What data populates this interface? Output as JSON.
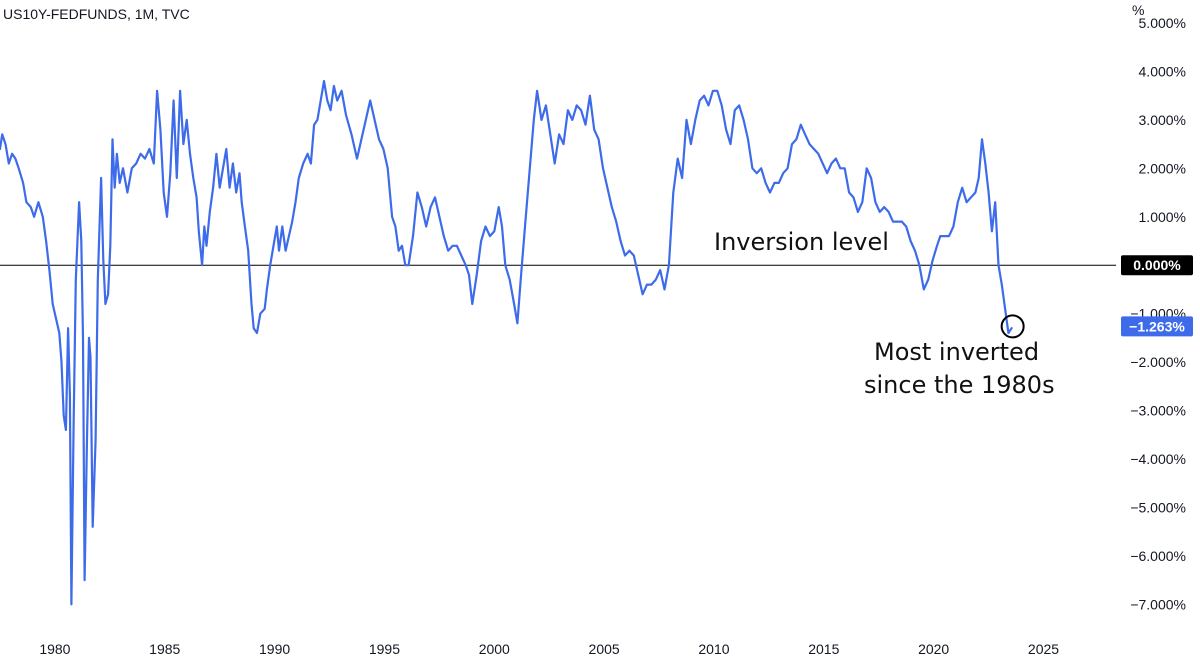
{
  "chart_data": {
    "type": "line",
    "title": "US10Y-FEDFUNDS, 1M, TVC",
    "xlabel": "",
    "ylabel": "%",
    "ylim": [
      -7.2,
      5.0
    ],
    "xlim": [
      1977.5,
      2028.3
    ],
    "grid": false,
    "x_ticks": [
      1980,
      1985,
      1990,
      1995,
      2000,
      2005,
      2010,
      2015,
      2020,
      2025
    ],
    "x_tick_labels": [
      "1980",
      "1985",
      "1990",
      "1995",
      "2000",
      "2005",
      "2010",
      "2015",
      "2020",
      "2025"
    ],
    "y_ticks": [
      5,
      4,
      3,
      2,
      1,
      0,
      -1,
      -2,
      -3,
      -4,
      -5,
      -6,
      -7
    ],
    "y_tick_labels": [
      "5.000%",
      "4.000%",
      "3.000%",
      "2.000%",
      "1.000%",
      "0.000%",
      "−1.000%",
      "−2.000%",
      "−3.000%",
      "−4.000%",
      "−5.000%",
      "−6.000%",
      "−7.000%"
    ],
    "current_value": -1.263,
    "current_value_label": "−1.263%",
    "zero_label": "0.000%",
    "line_color": "#3d6bea",
    "annotations": {
      "inversion_level": "Inversion level",
      "most_inverted_line1": "Most inverted",
      "most_inverted_line2": "since the 1980s"
    },
    "series": [
      {
        "values": [
          [
            1977.5,
            2.4
          ],
          [
            1977.6,
            2.7
          ],
          [
            1977.75,
            2.5
          ],
          [
            1977.9,
            2.1
          ],
          [
            1978.05,
            2.3
          ],
          [
            1978.2,
            2.2
          ],
          [
            1978.35,
            2.0
          ],
          [
            1978.55,
            1.7
          ],
          [
            1978.7,
            1.3
          ],
          [
            1978.9,
            1.2
          ],
          [
            1979.05,
            1.0
          ],
          [
            1979.25,
            1.3
          ],
          [
            1979.45,
            1.0
          ],
          [
            1979.6,
            0.5
          ],
          [
            1979.75,
            -0.1
          ],
          [
            1979.9,
            -0.8
          ],
          [
            1980.05,
            -1.1
          ],
          [
            1980.2,
            -1.4
          ],
          [
            1980.3,
            -2.0
          ],
          [
            1980.4,
            -3.1
          ],
          [
            1980.5,
            -3.4
          ],
          [
            1980.6,
            -1.3
          ],
          [
            1980.68,
            -2.7
          ],
          [
            1980.75,
            -7.0
          ],
          [
            1980.85,
            -3.3
          ],
          [
            1980.95,
            -0.3
          ],
          [
            1981.1,
            1.3
          ],
          [
            1981.2,
            0.5
          ],
          [
            1981.28,
            -1.5
          ],
          [
            1981.35,
            -6.5
          ],
          [
            1981.45,
            -3.8
          ],
          [
            1981.55,
            -1.5
          ],
          [
            1981.62,
            -1.9
          ],
          [
            1981.72,
            -5.4
          ],
          [
            1981.85,
            -3.6
          ],
          [
            1981.95,
            -0.3
          ],
          [
            1982.1,
            1.8
          ],
          [
            1982.2,
            0.1
          ],
          [
            1982.3,
            -0.8
          ],
          [
            1982.42,
            -0.6
          ],
          [
            1982.52,
            0.4
          ],
          [
            1982.62,
            2.6
          ],
          [
            1982.72,
            1.6
          ],
          [
            1982.82,
            2.3
          ],
          [
            1982.95,
            1.7
          ],
          [
            1983.1,
            2.0
          ],
          [
            1983.3,
            1.5
          ],
          [
            1983.5,
            2.0
          ],
          [
            1983.7,
            2.1
          ],
          [
            1983.9,
            2.3
          ],
          [
            1984.1,
            2.2
          ],
          [
            1984.3,
            2.4
          ],
          [
            1984.5,
            2.1
          ],
          [
            1984.65,
            3.6
          ],
          [
            1984.8,
            2.8
          ],
          [
            1984.95,
            1.5
          ],
          [
            1985.1,
            1.0
          ],
          [
            1985.25,
            1.9
          ],
          [
            1985.4,
            3.4
          ],
          [
            1985.55,
            1.8
          ],
          [
            1985.7,
            3.6
          ],
          [
            1985.85,
            2.5
          ],
          [
            1986.0,
            3.0
          ],
          [
            1986.15,
            2.3
          ],
          [
            1986.3,
            1.8
          ],
          [
            1986.45,
            1.4
          ],
          [
            1986.55,
            0.7
          ],
          [
            1986.7,
            0.0
          ],
          [
            1986.8,
            0.8
          ],
          [
            1986.9,
            0.4
          ],
          [
            1987.05,
            1.1
          ],
          [
            1987.2,
            1.6
          ],
          [
            1987.35,
            2.3
          ],
          [
            1987.5,
            1.6
          ],
          [
            1987.65,
            2.0
          ],
          [
            1987.8,
            2.4
          ],
          [
            1987.95,
            1.6
          ],
          [
            1988.1,
            2.1
          ],
          [
            1988.25,
            1.5
          ],
          [
            1988.4,
            1.9
          ],
          [
            1988.5,
            1.3
          ],
          [
            1988.65,
            0.8
          ],
          [
            1988.8,
            0.3
          ],
          [
            1988.95,
            -0.8
          ],
          [
            1989.05,
            -1.3
          ],
          [
            1989.2,
            -1.4
          ],
          [
            1989.35,
            -1.0
          ],
          [
            1989.55,
            -0.9
          ],
          [
            1989.65,
            -0.5
          ],
          [
            1989.8,
            0.0
          ],
          [
            1989.95,
            0.4
          ],
          [
            1990.1,
            0.8
          ],
          [
            1990.2,
            0.3
          ],
          [
            1990.35,
            0.8
          ],
          [
            1990.5,
            0.3
          ],
          [
            1990.65,
            0.6
          ],
          [
            1990.8,
            0.9
          ],
          [
            1990.95,
            1.3
          ],
          [
            1991.1,
            1.8
          ],
          [
            1991.3,
            2.1
          ],
          [
            1991.5,
            2.3
          ],
          [
            1991.65,
            2.1
          ],
          [
            1991.8,
            2.9
          ],
          [
            1991.95,
            3.0
          ],
          [
            1992.1,
            3.4
          ],
          [
            1992.25,
            3.8
          ],
          [
            1992.4,
            3.4
          ],
          [
            1992.55,
            3.2
          ],
          [
            1992.7,
            3.7
          ],
          [
            1992.85,
            3.4
          ],
          [
            1993.05,
            3.6
          ],
          [
            1993.25,
            3.1
          ],
          [
            1993.5,
            2.7
          ],
          [
            1993.75,
            2.2
          ],
          [
            1993.95,
            2.6
          ],
          [
            1994.15,
            3.0
          ],
          [
            1994.35,
            3.4
          ],
          [
            1994.55,
            3.0
          ],
          [
            1994.75,
            2.6
          ],
          [
            1994.95,
            2.4
          ],
          [
            1995.15,
            2.0
          ],
          [
            1995.35,
            1.0
          ],
          [
            1995.5,
            0.8
          ],
          [
            1995.65,
            0.3
          ],
          [
            1995.8,
            0.4
          ],
          [
            1995.95,
            0.0
          ],
          [
            1996.1,
            0.0
          ],
          [
            1996.3,
            0.6
          ],
          [
            1996.5,
            1.5
          ],
          [
            1996.7,
            1.2
          ],
          [
            1996.9,
            0.8
          ],
          [
            1997.1,
            1.2
          ],
          [
            1997.3,
            1.4
          ],
          [
            1997.5,
            1.0
          ],
          [
            1997.7,
            0.6
          ],
          [
            1997.9,
            0.3
          ],
          [
            1998.1,
            0.4
          ],
          [
            1998.3,
            0.4
          ],
          [
            1998.5,
            0.2
          ],
          [
            1998.7,
            0.0
          ],
          [
            1998.85,
            -0.2
          ],
          [
            1999.0,
            -0.8
          ],
          [
            1999.2,
            -0.2
          ],
          [
            1999.4,
            0.5
          ],
          [
            1999.6,
            0.8
          ],
          [
            1999.8,
            0.6
          ],
          [
            2000.0,
            0.7
          ],
          [
            2000.2,
            1.2
          ],
          [
            2000.35,
            0.8
          ],
          [
            2000.5,
            0.0
          ],
          [
            2000.7,
            -0.3
          ],
          [
            2000.9,
            -0.8
          ],
          [
            2001.05,
            -1.2
          ],
          [
            2001.2,
            -0.3
          ],
          [
            2001.4,
            0.8
          ],
          [
            2001.6,
            1.9
          ],
          [
            2001.8,
            3.0
          ],
          [
            2001.95,
            3.6
          ],
          [
            2002.15,
            3.0
          ],
          [
            2002.35,
            3.3
          ],
          [
            2002.55,
            2.7
          ],
          [
            2002.75,
            2.1
          ],
          [
            2002.95,
            2.7
          ],
          [
            2003.15,
            2.5
          ],
          [
            2003.35,
            3.2
          ],
          [
            2003.55,
            3.0
          ],
          [
            2003.75,
            3.3
          ],
          [
            2003.95,
            3.2
          ],
          [
            2004.15,
            2.9
          ],
          [
            2004.35,
            3.5
          ],
          [
            2004.55,
            2.8
          ],
          [
            2004.75,
            2.6
          ],
          [
            2004.95,
            2.0
          ],
          [
            2005.15,
            1.6
          ],
          [
            2005.35,
            1.2
          ],
          [
            2005.55,
            0.9
          ],
          [
            2005.75,
            0.5
          ],
          [
            2005.95,
            0.2
          ],
          [
            2006.15,
            0.3
          ],
          [
            2006.35,
            0.2
          ],
          [
            2006.55,
            -0.2
          ],
          [
            2006.75,
            -0.6
          ],
          [
            2006.95,
            -0.4
          ],
          [
            2007.15,
            -0.4
          ],
          [
            2007.35,
            -0.3
          ],
          [
            2007.55,
            -0.1
          ],
          [
            2007.75,
            -0.5
          ],
          [
            2007.95,
            0.0
          ],
          [
            2008.15,
            1.5
          ],
          [
            2008.35,
            2.2
          ],
          [
            2008.55,
            1.8
          ],
          [
            2008.75,
            3.0
          ],
          [
            2008.95,
            2.5
          ],
          [
            2009.15,
            3.0
          ],
          [
            2009.35,
            3.4
          ],
          [
            2009.55,
            3.5
          ],
          [
            2009.75,
            3.3
          ],
          [
            2009.95,
            3.6
          ],
          [
            2010.15,
            3.6
          ],
          [
            2010.35,
            3.3
          ],
          [
            2010.55,
            2.8
          ],
          [
            2010.75,
            2.5
          ],
          [
            2010.95,
            3.2
          ],
          [
            2011.15,
            3.3
          ],
          [
            2011.35,
            3.0
          ],
          [
            2011.55,
            2.6
          ],
          [
            2011.75,
            2.0
          ],
          [
            2011.95,
            1.9
          ],
          [
            2012.15,
            2.0
          ],
          [
            2012.35,
            1.7
          ],
          [
            2012.55,
            1.5
          ],
          [
            2012.75,
            1.7
          ],
          [
            2012.95,
            1.7
          ],
          [
            2013.15,
            1.9
          ],
          [
            2013.35,
            2.0
          ],
          [
            2013.55,
            2.5
          ],
          [
            2013.75,
            2.6
          ],
          [
            2013.95,
            2.9
          ],
          [
            2014.15,
            2.7
          ],
          [
            2014.35,
            2.5
          ],
          [
            2014.55,
            2.4
          ],
          [
            2014.75,
            2.3
          ],
          [
            2014.95,
            2.1
          ],
          [
            2015.15,
            1.9
          ],
          [
            2015.35,
            2.1
          ],
          [
            2015.55,
            2.2
          ],
          [
            2015.75,
            2.0
          ],
          [
            2015.95,
            2.0
          ],
          [
            2016.15,
            1.5
          ],
          [
            2016.35,
            1.4
          ],
          [
            2016.55,
            1.1
          ],
          [
            2016.75,
            1.3
          ],
          [
            2016.95,
            2.0
          ],
          [
            2017.15,
            1.8
          ],
          [
            2017.35,
            1.3
          ],
          [
            2017.55,
            1.1
          ],
          [
            2017.75,
            1.2
          ],
          [
            2017.95,
            1.1
          ],
          [
            2018.15,
            0.9
          ],
          [
            2018.35,
            0.9
          ],
          [
            2018.55,
            0.9
          ],
          [
            2018.75,
            0.8
          ],
          [
            2018.95,
            0.5
          ],
          [
            2019.15,
            0.3
          ],
          [
            2019.35,
            0.0
          ],
          [
            2019.55,
            -0.5
          ],
          [
            2019.75,
            -0.3
          ],
          [
            2019.95,
            0.1
          ],
          [
            2020.15,
            0.4
          ],
          [
            2020.3,
            0.6
          ],
          [
            2020.5,
            0.6
          ],
          [
            2020.7,
            0.6
          ],
          [
            2020.9,
            0.8
          ],
          [
            2021.1,
            1.3
          ],
          [
            2021.3,
            1.6
          ],
          [
            2021.5,
            1.3
          ],
          [
            2021.7,
            1.4
          ],
          [
            2021.9,
            1.5
          ],
          [
            2022.05,
            1.8
          ],
          [
            2022.2,
            2.6
          ],
          [
            2022.35,
            2.1
          ],
          [
            2022.5,
            1.5
          ],
          [
            2022.65,
            0.7
          ],
          [
            2022.8,
            1.3
          ],
          [
            2022.95,
            0.0
          ],
          [
            2023.1,
            -0.4
          ],
          [
            2023.25,
            -0.9
          ],
          [
            2023.4,
            -1.4
          ],
          [
            2023.55,
            -1.3
          ]
        ]
      }
    ]
  }
}
